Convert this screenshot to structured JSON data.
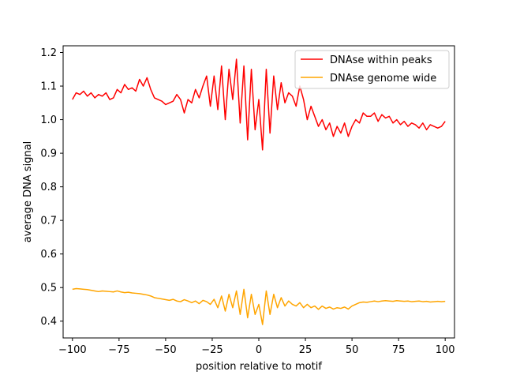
{
  "chart_data": {
    "type": "line",
    "xlabel": "position relative to motif",
    "ylabel": "average DNA signal",
    "xlim": [
      -105,
      105
    ],
    "ylim": [
      0.35,
      1.22
    ],
    "xticks": [
      -100,
      -75,
      -50,
      -25,
      0,
      25,
      50,
      75,
      100
    ],
    "yticks": [
      0.4,
      0.5,
      0.6,
      0.7,
      0.8,
      0.9,
      1.0,
      1.1,
      1.2
    ],
    "grid": false,
    "legend_position": "top-right",
    "series": [
      {
        "name": "DNAse within peaks",
        "color": "#ff0000",
        "x": [
          -100,
          -98,
          -96,
          -94,
          -92,
          -90,
          -88,
          -86,
          -84,
          -82,
          -80,
          -78,
          -76,
          -74,
          -72,
          -70,
          -68,
          -66,
          -64,
          -62,
          -60,
          -58,
          -56,
          -54,
          -52,
          -50,
          -48,
          -46,
          -44,
          -42,
          -40,
          -38,
          -36,
          -34,
          -32,
          -30,
          -28,
          -26,
          -24,
          -22,
          -20,
          -18,
          -16,
          -14,
          -12,
          -10,
          -8,
          -6,
          -4,
          -2,
          0,
          2,
          4,
          6,
          8,
          10,
          12,
          14,
          16,
          18,
          20,
          22,
          24,
          26,
          28,
          30,
          32,
          34,
          36,
          38,
          40,
          42,
          44,
          46,
          48,
          50,
          52,
          54,
          56,
          58,
          60,
          62,
          64,
          66,
          68,
          70,
          72,
          74,
          76,
          78,
          80,
          82,
          84,
          86,
          88,
          90,
          92,
          94,
          96,
          98,
          100
        ],
        "y": [
          1.06,
          1.08,
          1.075,
          1.085,
          1.07,
          1.08,
          1.065,
          1.075,
          1.07,
          1.08,
          1.06,
          1.065,
          1.09,
          1.08,
          1.105,
          1.09,
          1.095,
          1.085,
          1.12,
          1.1,
          1.125,
          1.09,
          1.065,
          1.06,
          1.055,
          1.045,
          1.05,
          1.055,
          1.075,
          1.06,
          1.02,
          1.06,
          1.05,
          1.09,
          1.065,
          1.1,
          1.13,
          1.04,
          1.13,
          1.03,
          1.16,
          1.0,
          1.15,
          1.06,
          1.18,
          0.99,
          1.16,
          0.94,
          1.15,
          0.97,
          1.06,
          0.91,
          1.15,
          0.96,
          1.13,
          1.03,
          1.11,
          1.05,
          1.08,
          1.07,
          1.04,
          1.1,
          1.06,
          1.0,
          1.04,
          1.01,
          0.98,
          1.0,
          0.97,
          0.99,
          0.95,
          0.98,
          0.96,
          0.99,
          0.95,
          0.98,
          1.0,
          0.99,
          1.02,
          1.01,
          1.01,
          1.02,
          0.995,
          1.015,
          1.005,
          1.01,
          0.99,
          1.0,
          0.985,
          0.995,
          0.98,
          0.99,
          0.985,
          0.975,
          0.99,
          0.97,
          0.985,
          0.98,
          0.975,
          0.98,
          0.995
        ]
      },
      {
        "name": "DNAse genome wide",
        "color": "#ffa500",
        "x": [
          -100,
          -98,
          -96,
          -94,
          -92,
          -90,
          -88,
          -86,
          -84,
          -82,
          -80,
          -78,
          -76,
          -74,
          -72,
          -70,
          -68,
          -66,
          -64,
          -62,
          -60,
          -58,
          -56,
          -54,
          -52,
          -50,
          -48,
          -46,
          -44,
          -42,
          -40,
          -38,
          -36,
          -34,
          -32,
          -30,
          -28,
          -26,
          -24,
          -22,
          -20,
          -18,
          -16,
          -14,
          -12,
          -10,
          -8,
          -6,
          -4,
          -2,
          0,
          2,
          4,
          6,
          8,
          10,
          12,
          14,
          16,
          18,
          20,
          22,
          24,
          26,
          28,
          30,
          32,
          34,
          36,
          38,
          40,
          42,
          44,
          46,
          48,
          50,
          52,
          54,
          56,
          58,
          60,
          62,
          64,
          66,
          68,
          70,
          72,
          74,
          76,
          78,
          80,
          82,
          84,
          86,
          88,
          90,
          92,
          94,
          96,
          98,
          100
        ],
        "y": [
          0.495,
          0.497,
          0.496,
          0.495,
          0.494,
          0.492,
          0.49,
          0.488,
          0.49,
          0.489,
          0.488,
          0.487,
          0.49,
          0.487,
          0.485,
          0.486,
          0.484,
          0.483,
          0.482,
          0.48,
          0.478,
          0.475,
          0.47,
          0.468,
          0.466,
          0.464,
          0.462,
          0.465,
          0.46,
          0.458,
          0.464,
          0.46,
          0.455,
          0.46,
          0.452,
          0.462,
          0.458,
          0.45,
          0.465,
          0.44,
          0.475,
          0.43,
          0.48,
          0.44,
          0.49,
          0.42,
          0.495,
          0.41,
          0.48,
          0.42,
          0.45,
          0.39,
          0.49,
          0.42,
          0.48,
          0.44,
          0.47,
          0.445,
          0.46,
          0.45,
          0.445,
          0.455,
          0.44,
          0.45,
          0.44,
          0.445,
          0.435,
          0.445,
          0.438,
          0.442,
          0.436,
          0.44,
          0.438,
          0.442,
          0.436,
          0.445,
          0.45,
          0.455,
          0.457,
          0.456,
          0.458,
          0.46,
          0.458,
          0.46,
          0.461,
          0.46,
          0.459,
          0.461,
          0.46,
          0.459,
          0.46,
          0.458,
          0.459,
          0.46,
          0.458,
          0.459,
          0.457,
          0.458,
          0.459,
          0.458,
          0.459
        ]
      }
    ]
  }
}
